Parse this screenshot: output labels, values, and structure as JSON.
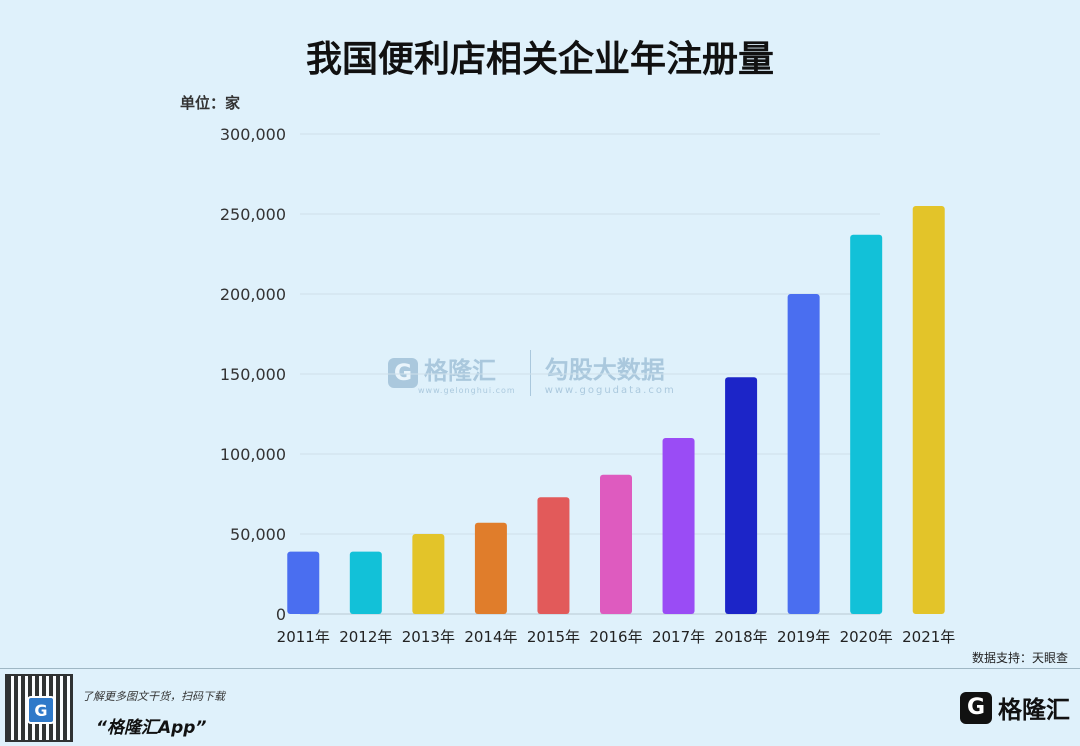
{
  "chart_data": {
    "type": "bar",
    "title": "我国便利店相关企业年注册量",
    "unit_label": "单位：家",
    "categories": [
      "2011年",
      "2012年",
      "2013年",
      "2014年",
      "2015年",
      "2016年",
      "2017年",
      "2018年",
      "2019年",
      "2020年",
      "2021年"
    ],
    "values": [
      39000,
      39000,
      50000,
      57000,
      73000,
      87000,
      110000,
      148000,
      200000,
      237000,
      255000
    ],
    "colors": [
      "#4a6ef0",
      "#12c1d8",
      "#e3c429",
      "#e07d2b",
      "#e25a5a",
      "#de5bbf",
      "#9a4cf5",
      "#1c25c8",
      "#4a6ef0",
      "#12c1d8",
      "#e3c429"
    ],
    "ylim": [
      0,
      300000
    ],
    "yticks": [
      "0",
      "50,000",
      "100,000",
      "150,000",
      "200,000",
      "250,000",
      "300,000"
    ],
    "grid": true,
    "legend": "none"
  },
  "source": "数据支持：天眼查",
  "watermark": {
    "brand": "格隆汇",
    "brand_sub": "www.gelonghui.com",
    "brand2": "勾股大数据",
    "brand2_sub": "www.gogudata.com",
    "logo_letter": "G"
  },
  "footer": {
    "promo_line1": "了解更多图文干货，扫码下载",
    "promo_line2": "“格隆汇App”",
    "logo_letter": "G",
    "logo_name": "格隆汇"
  }
}
